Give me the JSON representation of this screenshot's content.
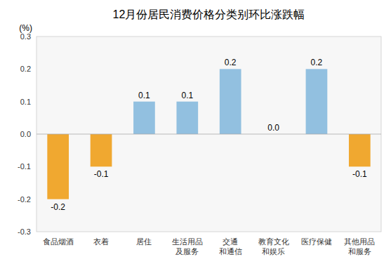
{
  "chart_data": {
    "type": "bar",
    "title": "12月份居民消费价格分类别环比涨跌幅",
    "ylabel": "(%)",
    "categories": [
      "食品烟酒",
      "衣着",
      "居住",
      "生活用品\n及服务",
      "交通\n和通信",
      "教育文化\n和娱乐",
      "医疗保健",
      "其他用品\n和服务"
    ],
    "values": [
      -0.2,
      -0.1,
      0.1,
      0.1,
      0.2,
      0.0,
      0.2,
      -0.1
    ],
    "value_labels": [
      "-0.2",
      "-0.1",
      "0.1",
      "0.1",
      "0.2",
      "0.0",
      "0.2",
      "-0.1"
    ],
    "colors": [
      "#f0a830",
      "#f0a830",
      "#92c0e0",
      "#92c0e0",
      "#92c0e0",
      "#92c0e0",
      "#92c0e0",
      "#f0a830"
    ],
    "ylim": [
      -0.3,
      0.3
    ],
    "yticks": [
      -0.3,
      -0.2,
      -0.1,
      {
        "value": 0,
        "label": "0.0"
      },
      0.1,
      0.2,
      0.3
    ],
    "grid": false,
    "data_labels": true
  }
}
